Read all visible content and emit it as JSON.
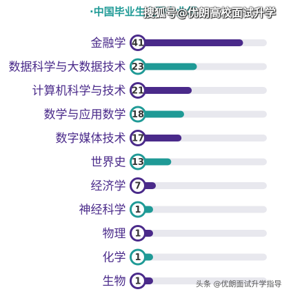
{
  "header": {
    "title": "中国毕业生主要专业领",
    "overlay": "搜狐号@优朗高校面试升学"
  },
  "watermark": "头条 @优朗面试升学指导",
  "colors": {
    "purple": "#4a2a8a",
    "teal": "#1f9a96",
    "track": "#e8e8ee"
  },
  "chart_data": {
    "type": "bar",
    "orientation": "horizontal",
    "title": "中国毕业生主要专业领",
    "categories": [
      "金融学",
      "数据科学与大数据技术",
      "计算机科学与技术",
      "数学与应用数学",
      "数字媒体技术",
      "世界史",
      "经济学",
      "神经科学",
      "物理",
      "化学",
      "生物"
    ],
    "values": [
      41,
      23,
      21,
      18,
      17,
      13,
      7,
      1,
      1,
      1,
      1
    ],
    "bar_colors": [
      "purple",
      "teal",
      "purple",
      "teal",
      "purple",
      "teal",
      "purple",
      "teal",
      "purple",
      "teal",
      "purple"
    ],
    "xlim": [
      0,
      50
    ],
    "grid": false,
    "legend": "none"
  }
}
